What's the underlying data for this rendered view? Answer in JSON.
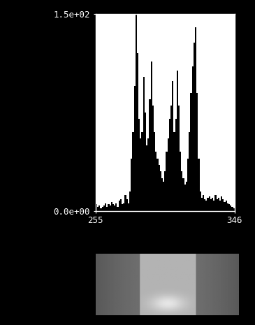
{
  "chart_data": {
    "type": "histogram",
    "bins": [
      255,
      256,
      257,
      258,
      259,
      260,
      261,
      262,
      263,
      264,
      265,
      266,
      267,
      268,
      269,
      270,
      271,
      272,
      273,
      274,
      275,
      276,
      277,
      278,
      279,
      280,
      281,
      282,
      283,
      284,
      285,
      286,
      287,
      288,
      289,
      290,
      291,
      292,
      293,
      294,
      295,
      296,
      297,
      298,
      299,
      300,
      301,
      302,
      303,
      304,
      305,
      306,
      307,
      308,
      309,
      310,
      311,
      312,
      313,
      314,
      315,
      316,
      317,
      318,
      319,
      320,
      321,
      322,
      323,
      324,
      325,
      326,
      327,
      328,
      329,
      330,
      331,
      332,
      333,
      334,
      335,
      336,
      337,
      338,
      339,
      340,
      341,
      342,
      343,
      344,
      345,
      346
    ],
    "counts": [
      5,
      3,
      4,
      2,
      3,
      4,
      6,
      3,
      5,
      4,
      7,
      5,
      4,
      6,
      3,
      8,
      9,
      5,
      6,
      12,
      9,
      6,
      15,
      40,
      60,
      95,
      150,
      120,
      70,
      55,
      60,
      102,
      75,
      50,
      55,
      85,
      114,
      80,
      60,
      45,
      40,
      35,
      30,
      25,
      22,
      30,
      45,
      55,
      70,
      80,
      99,
      60,
      70,
      107,
      80,
      45,
      30,
      25,
      20,
      22,
      40,
      60,
      90,
      110,
      128,
      140,
      90,
      40,
      15,
      10,
      12,
      9,
      8,
      10,
      11,
      9,
      10,
      8,
      12,
      9,
      10,
      8,
      11,
      9,
      7,
      8,
      6,
      5,
      4,
      3,
      2
    ],
    "color": "#000000",
    "xlim": [
      255,
      346
    ],
    "xticks": [
      255,
      346
    ],
    "ylim": [
      0,
      150
    ],
    "yticks": [
      {
        "value": 0,
        "label": "0.0e+00"
      },
      {
        "value": 150,
        "label": "1.5e+02"
      }
    ],
    "grid": false
  }
}
